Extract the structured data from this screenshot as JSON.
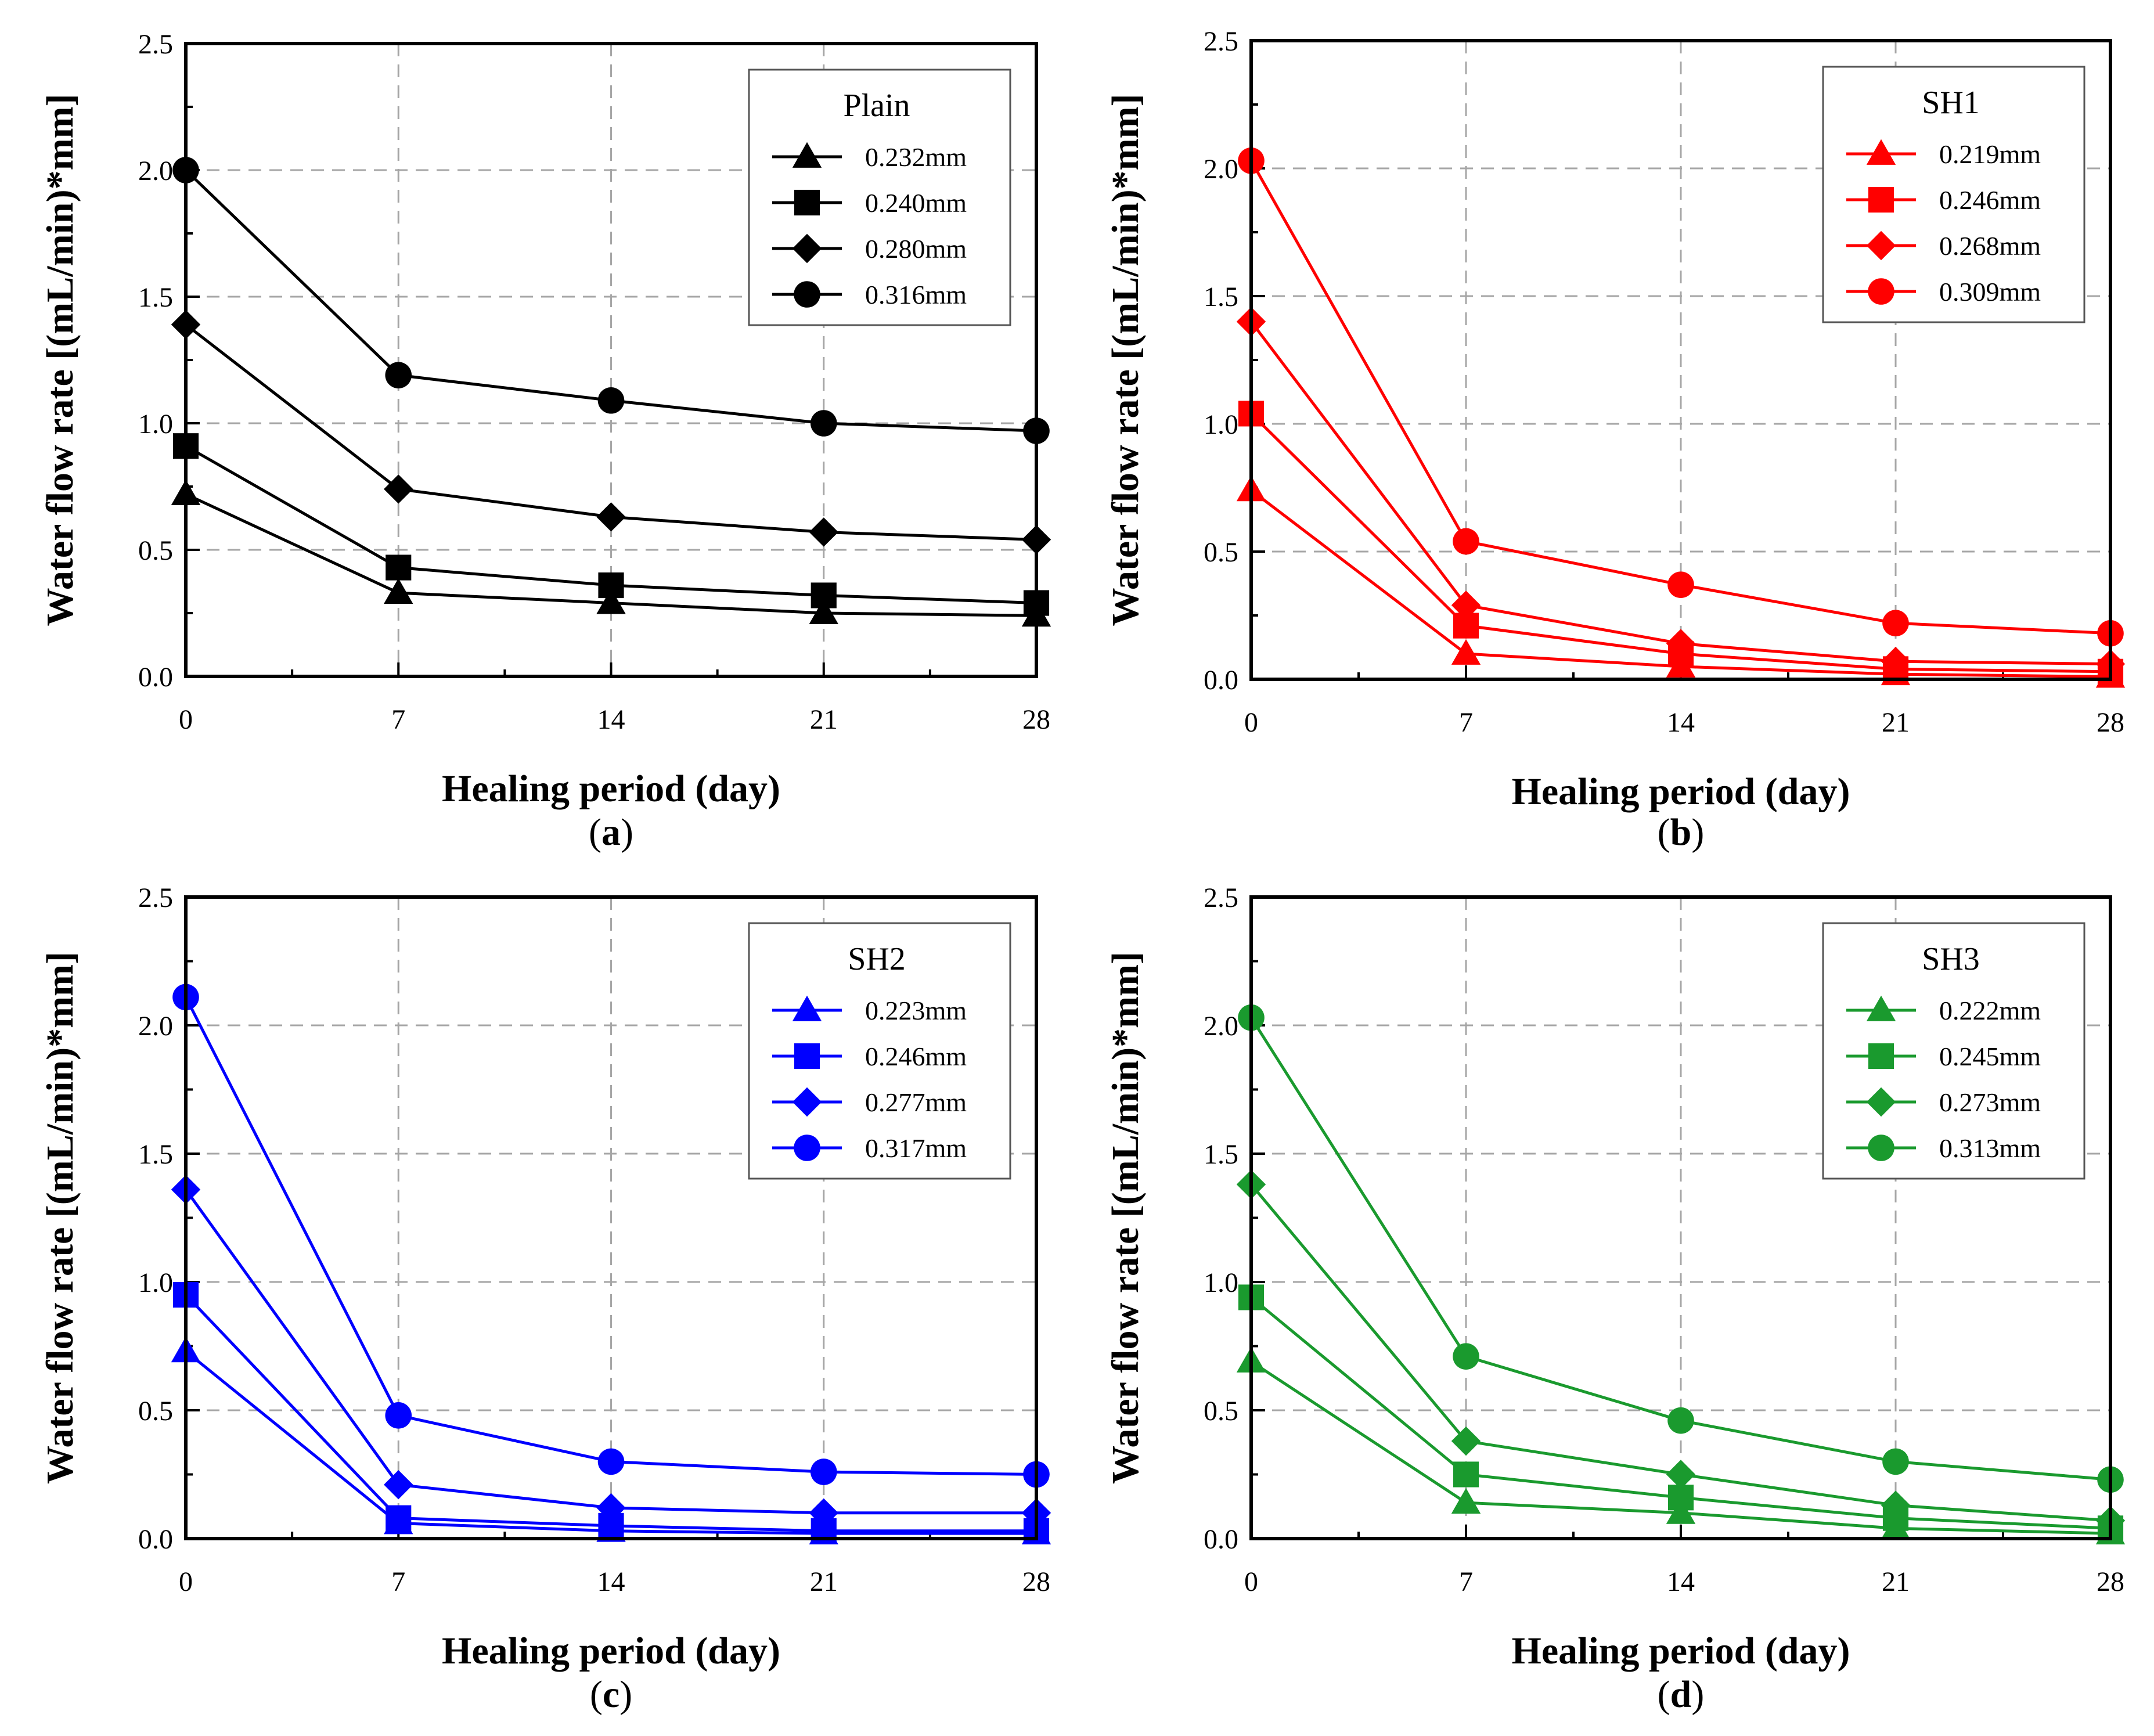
{
  "chart_data": [
    {
      "type": "line",
      "panel_label": "a",
      "legend_title": "Plain",
      "color": "#000000",
      "xlabel": "Healing period (day)",
      "ylabel": "Water flow rate [(mL/min)*mm]",
      "xlim": [
        0,
        28
      ],
      "ylim": [
        0,
        2.5
      ],
      "xticks": [
        "0",
        "7",
        "14",
        "21",
        "28"
      ],
      "yticks": [
        "0.0",
        "0.5",
        "1.0",
        "1.5",
        "2.0",
        "2.5"
      ],
      "grid": true,
      "legend_position": "top-right",
      "x": [
        0,
        7,
        14,
        21,
        28
      ],
      "series": [
        {
          "name": "0.232mm",
          "marker": "triangle",
          "values": [
            0.72,
            0.33,
            0.29,
            0.25,
            0.24
          ]
        },
        {
          "name": "0.240mm",
          "marker": "square",
          "values": [
            0.91,
            0.43,
            0.36,
            0.32,
            0.29
          ]
        },
        {
          "name": "0.280mm",
          "marker": "diamond",
          "values": [
            1.39,
            0.74,
            0.63,
            0.57,
            0.54
          ]
        },
        {
          "name": "0.316mm",
          "marker": "circle",
          "values": [
            2.0,
            1.19,
            1.09,
            1.0,
            0.97
          ]
        }
      ]
    },
    {
      "type": "line",
      "panel_label": "b",
      "legend_title": "SH1",
      "color": "#ff0000",
      "xlabel": "Healing period (day)",
      "ylabel": "Water flow rate [(mL/min)*mm]",
      "xlim": [
        0,
        28
      ],
      "ylim": [
        0,
        2.5
      ],
      "xticks": [
        "0",
        "7",
        "14",
        "21",
        "28"
      ],
      "yticks": [
        "0.0",
        "0.5",
        "1.0",
        "1.5",
        "2.0",
        "2.5"
      ],
      "grid": true,
      "legend_position": "top-right",
      "x": [
        0,
        7,
        14,
        21,
        28
      ],
      "series": [
        {
          "name": "0.219mm",
          "marker": "triangle",
          "values": [
            0.74,
            0.1,
            0.05,
            0.02,
            0.01
          ]
        },
        {
          "name": "0.246mm",
          "marker": "square",
          "values": [
            1.04,
            0.21,
            0.1,
            0.04,
            0.03
          ]
        },
        {
          "name": "0.268mm",
          "marker": "diamond",
          "values": [
            1.4,
            0.29,
            0.14,
            0.07,
            0.06
          ]
        },
        {
          "name": "0.309mm",
          "marker": "circle",
          "values": [
            2.03,
            0.54,
            0.37,
            0.22,
            0.18
          ]
        }
      ]
    },
    {
      "type": "line",
      "panel_label": "c",
      "legend_title": "SH2",
      "color": "#0000ff",
      "xlabel": "Healing period (day)",
      "ylabel": "Water flow rate [(mL/min)*mm]",
      "xlim": [
        0,
        28
      ],
      "ylim": [
        0,
        2.5
      ],
      "xticks": [
        "0",
        "7",
        "14",
        "21",
        "28"
      ],
      "yticks": [
        "0.0",
        "0.5",
        "1.0",
        "1.5",
        "2.0",
        "2.5"
      ],
      "grid": true,
      "legend_position": "top-right",
      "x": [
        0,
        7,
        14,
        21,
        28
      ],
      "series": [
        {
          "name": "0.223mm",
          "marker": "triangle",
          "values": [
            0.73,
            0.06,
            0.03,
            0.02,
            0.02
          ]
        },
        {
          "name": "0.246mm",
          "marker": "square",
          "values": [
            0.95,
            0.08,
            0.05,
            0.03,
            0.03
          ]
        },
        {
          "name": "0.277mm",
          "marker": "diamond",
          "values": [
            1.36,
            0.21,
            0.12,
            0.1,
            0.1
          ]
        },
        {
          "name": "0.317mm",
          "marker": "circle",
          "values": [
            2.11,
            0.48,
            0.3,
            0.26,
            0.25
          ]
        }
      ]
    },
    {
      "type": "line",
      "panel_label": "d",
      "legend_title": "SH3",
      "color": "#1a9a2e",
      "xlabel": "Healing period (day)",
      "ylabel": "Water flow rate [(mL/min)*mm]",
      "xlim": [
        0,
        28
      ],
      "ylim": [
        0,
        2.5
      ],
      "xticks": [
        "0",
        "7",
        "14",
        "21",
        "28"
      ],
      "yticks": [
        "0.0",
        "0.5",
        "1.0",
        "1.5",
        "2.0",
        "2.5"
      ],
      "grid": true,
      "legend_position": "top-right",
      "x": [
        0,
        7,
        14,
        21,
        28
      ],
      "series": [
        {
          "name": "0.222mm",
          "marker": "triangle",
          "values": [
            0.69,
            0.14,
            0.1,
            0.04,
            0.02
          ]
        },
        {
          "name": "0.245mm",
          "marker": "square",
          "values": [
            0.94,
            0.25,
            0.16,
            0.08,
            0.04
          ]
        },
        {
          "name": "0.273mm",
          "marker": "diamond",
          "values": [
            1.38,
            0.38,
            0.25,
            0.13,
            0.07
          ]
        },
        {
          "name": "0.313mm",
          "marker": "circle",
          "values": [
            2.03,
            0.71,
            0.46,
            0.3,
            0.23
          ]
        }
      ]
    }
  ]
}
